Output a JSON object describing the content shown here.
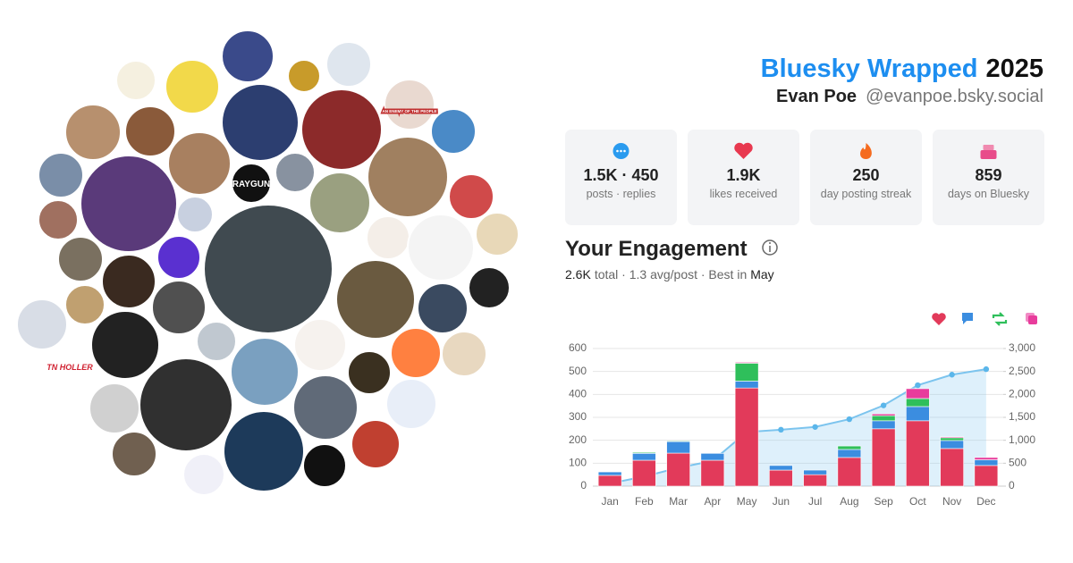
{
  "header": {
    "title": "Bluesky Wrapped",
    "year": "2025",
    "name": "Evan Poe",
    "handle": "@evanpoe.bsky.social"
  },
  "avatar_labels": [
    "RAYGUN",
    "TN HOLLER",
    "AN ENEMY OF THE PEOPLE"
  ],
  "stats": [
    {
      "value": "1.5K · 450",
      "label": "posts · replies"
    },
    {
      "value": "1.9K",
      "label": "likes received"
    },
    {
      "value": "250",
      "label": "day posting streak"
    },
    {
      "value": "859",
      "label": "days on Bluesky"
    }
  ],
  "engagement": {
    "title": "Your Engagement",
    "total": "2.6K",
    "middle": "total · 1.3 avg/post · Best in",
    "best": "May"
  },
  "chart_data": {
    "type": "stacked-bar-line",
    "categories": [
      "Jan",
      "Feb",
      "Mar",
      "Apr",
      "May",
      "Jun",
      "Jul",
      "Aug",
      "Sep",
      "Oct",
      "Nov",
      "Dec"
    ],
    "series": [
      {
        "color": "#e23a5a",
        "values": [
          47,
          113,
          144,
          113,
          428,
          70,
          50,
          125,
          250,
          285,
          164,
          90
        ]
      },
      {
        "color": "#3b8de0",
        "values": [
          15,
          30,
          50,
          30,
          30,
          20,
          20,
          35,
          35,
          62,
          35,
          25
        ]
      },
      {
        "color": "#2fbf5b",
        "values": [
          0,
          4,
          3,
          0,
          78,
          0,
          0,
          15,
          22,
          35,
          12,
          0
        ]
      },
      {
        "color": "#e83c9c",
        "values": [
          0,
          0,
          0,
          0,
          4,
          0,
          0,
          0,
          8,
          43,
          4,
          10
        ]
      },
      {
        "color": "#7cc4ee",
        "axis": "y2",
        "values": [
          60,
          210,
          400,
          550,
          1180,
          1230,
          1290,
          1460,
          1760,
          2200,
          2430,
          2550
        ]
      }
    ],
    "ylim": [
      0,
      600
    ],
    "yticks": [
      0,
      100,
      200,
      300,
      400,
      500,
      600
    ],
    "y2lim": [
      0,
      3000
    ],
    "y2ticks": [
      0,
      500,
      {
        "value": 1000,
        "label": "1,000"
      },
      {
        "value": 1500,
        "label": "1,500"
      },
      {
        "value": 2000,
        "label": "2,000"
      },
      {
        "value": 2500,
        "label": "2,500"
      },
      {
        "value": 3000,
        "label": "3,000"
      }
    ],
    "grid": true
  }
}
